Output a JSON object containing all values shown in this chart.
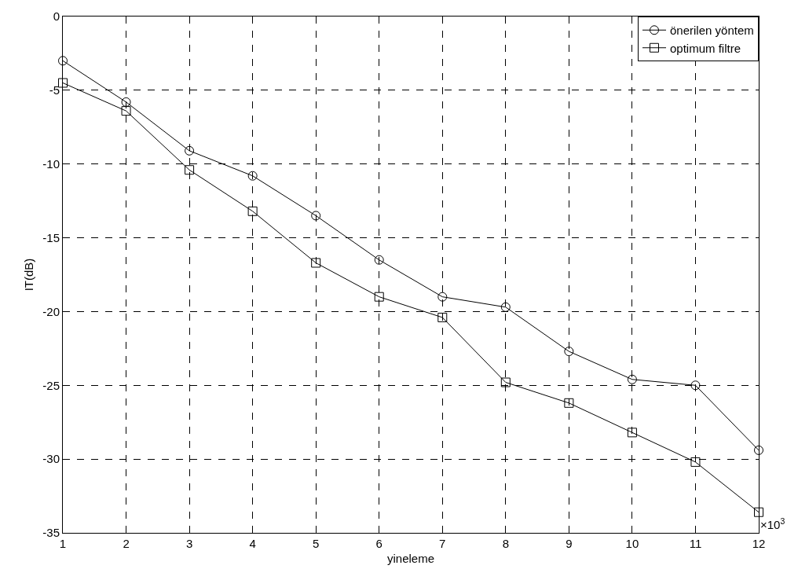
{
  "chart_data": {
    "type": "line",
    "xlabel": "yineleme",
    "ylabel": "IT(dB)",
    "x": [
      1,
      2,
      3,
      4,
      5,
      6,
      7,
      8,
      9,
      10,
      11,
      12
    ],
    "series": [
      {
        "name": "önerilen yöntem",
        "color": "#000000",
        "marker": "circle",
        "values": [
          -3,
          -5.8,
          -9.1,
          -10.8,
          -13.5,
          -16.5,
          -19,
          -19.7,
          -22.7,
          -24.6,
          -25,
          -29.4
        ]
      },
      {
        "name": "optimum filtre",
        "color": "#000000",
        "marker": "square",
        "values": [
          -4.5,
          -6.4,
          -10.4,
          -13.2,
          -16.7,
          -19,
          -20.4,
          -24.8,
          -26.2,
          -28.2,
          -30.2,
          -33.6
        ]
      }
    ],
    "xlim": [
      1,
      12
    ],
    "xticks": [
      1,
      2,
      3,
      4,
      5,
      6,
      7,
      8,
      9,
      10,
      11,
      12
    ],
    "ylim": [
      -35,
      0
    ],
    "yticks": [
      -35,
      -30,
      -25,
      -20,
      -15,
      -10,
      -5,
      0
    ],
    "grid": true,
    "line_style": "solid",
    "legend": "top right",
    "annotations": [
      "×10$^{3}$"
    ]
  }
}
